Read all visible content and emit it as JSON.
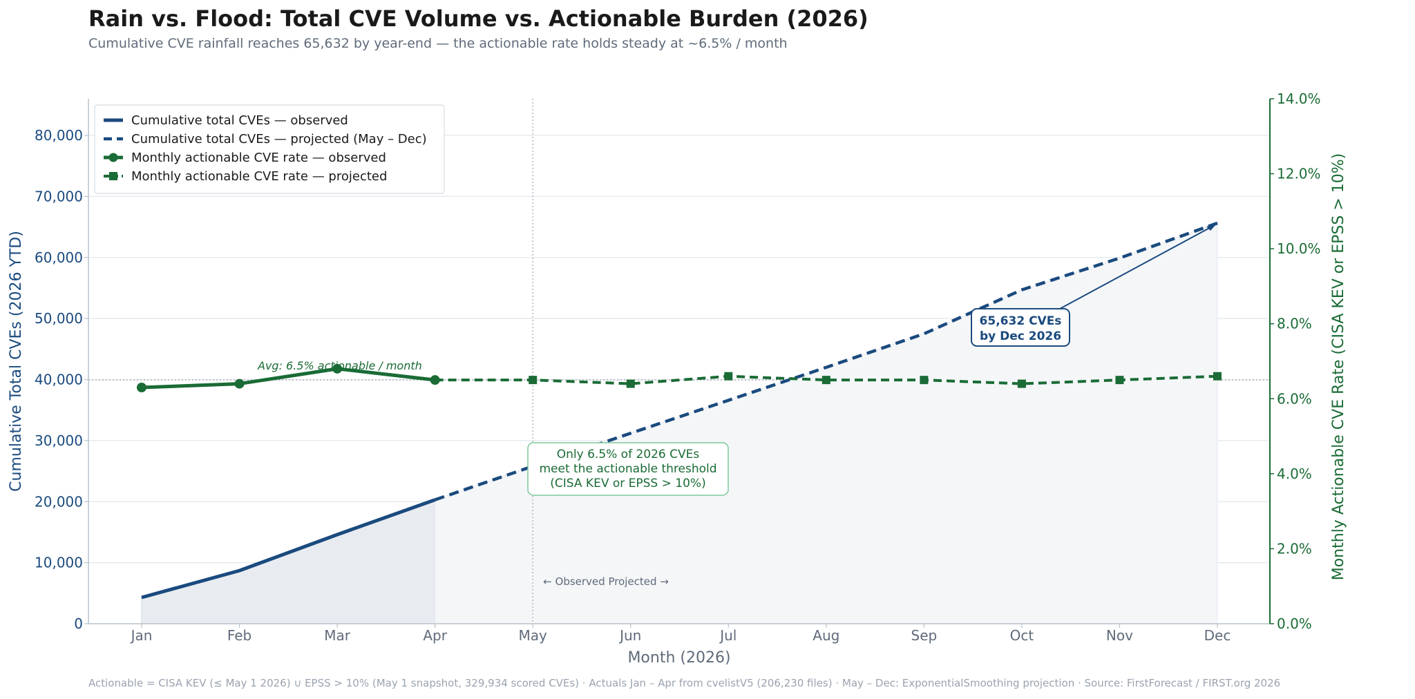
{
  "title": "Rain vs. Flood: Total CVE Volume vs. Actionable Burden  (2026)",
  "subtitle": "Cumulative CVE rainfall reaches 65,632 by year-end  —  the actionable rate holds steady at ~6.5% / month",
  "footer": "Actionable = CISA KEV (≤ May 1 2026) ∪ EPSS > 10% (May 1 snapshot, 329,934 scored CVEs)  ·  Actuals Jan – Apr from cvelistV5 (206,230 files)  ·  May – Dec: ExponentialSmoothing projection  ·  Source: FirstForecast / FIRST.org 2026",
  "colors": {
    "blue": "#1a4a7e",
    "green": "#1a6b35",
    "fill_obs": "#e8ecf1",
    "fill_proj": "#f4f6f8",
    "grid": "#e3e7ec"
  },
  "chart_data": {
    "type": "line",
    "categories": [
      "Jan",
      "Feb",
      "Mar",
      "Apr",
      "May",
      "Jun",
      "Jul",
      "Aug",
      "Sep",
      "Oct",
      "Nov",
      "Dec"
    ],
    "xlabel": "Month  (2026)",
    "ylabel_left": "Cumulative Total CVEs  (2026 YTD)",
    "ylabel_right": "Monthly Actionable CVE Rate  (CISA KEV or EPSS > 10%)",
    "ylim_left": [
      0,
      86000
    ],
    "ylim_right": [
      0,
      14
    ],
    "yticks_left": [
      0,
      10000,
      20000,
      30000,
      40000,
      50000,
      60000,
      70000,
      80000
    ],
    "yticks_left_labels": [
      "0",
      "10,000",
      "20,000",
      "30,000",
      "40,000",
      "50,000",
      "60,000",
      "70,000",
      "80,000"
    ],
    "yticks_right": [
      0,
      2,
      4,
      6,
      8,
      10,
      12,
      14
    ],
    "yticks_right_labels": [
      "0.0%",
      "2.0%",
      "4.0%",
      "6.0%",
      "8.0%",
      "10.0%",
      "12.0%",
      "14.0%"
    ],
    "grid": true,
    "legend_position": "top-left",
    "divider_category": "May",
    "series": [
      {
        "name": "Cumulative total CVEs — observed",
        "axis": "left",
        "style": "solid",
        "x": [
          "Jan",
          "Feb",
          "Mar",
          "Apr"
        ],
        "values": [
          4300,
          8700,
          14600,
          20300
        ]
      },
      {
        "name": "Cumulative total CVEs — projected  (May – Dec)",
        "axis": "left",
        "style": "dashed",
        "x": [
          "Apr",
          "May",
          "Jun",
          "Jul",
          "Aug",
          "Sep",
          "Oct",
          "Nov",
          "Dec"
        ],
        "values": [
          20300,
          25800,
          31200,
          36600,
          42000,
          47500,
          54700,
          59900,
          65632
        ]
      },
      {
        "name": "Monthly actionable CVE rate — observed",
        "axis": "right",
        "style": "solid-circle",
        "x": [
          "Jan",
          "Feb",
          "Mar",
          "Apr"
        ],
        "values": [
          6.3,
          6.4,
          6.8,
          6.5
        ]
      },
      {
        "name": "Monthly actionable CVE rate — projected",
        "axis": "right",
        "style": "dashed-square",
        "x": [
          "Apr",
          "May",
          "Jun",
          "Jul",
          "Aug",
          "Sep",
          "Oct",
          "Nov",
          "Dec"
        ],
        "values": [
          6.5,
          6.5,
          6.4,
          6.6,
          6.5,
          6.5,
          6.4,
          6.5,
          6.6
        ]
      }
    ],
    "average_line": {
      "value": 6.5,
      "label": "Avg: 6.5% actionable / month"
    },
    "annotations": {
      "total": {
        "lines": [
          "65,632 CVEs",
          "by Dec 2026"
        ],
        "target_category": "Dec",
        "target_value": 65632
      },
      "share": {
        "lines": [
          "Only 6.5% of 2026 CVEs",
          "meet the actionable threshold",
          "(CISA KEV or EPSS > 10%)"
        ]
      },
      "divider": "← Observed   Projected →"
    }
  }
}
